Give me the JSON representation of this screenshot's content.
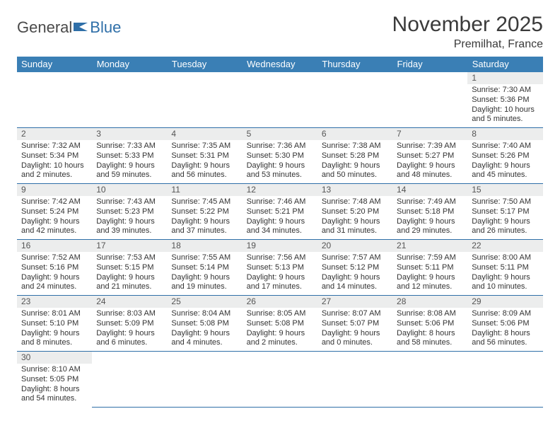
{
  "logo": {
    "text1": "General",
    "text2": "Blue"
  },
  "title": "November 2025",
  "location": "Premilhat, France",
  "colors": {
    "header_bg": "#3a7fb5",
    "header_text": "#ffffff",
    "rule": "#2f6fa8",
    "daybar_bg": "#eceded",
    "page_bg": "#ffffff",
    "text": "#333333",
    "logo_icon": "#2f6fa8"
  },
  "weekdays": [
    "Sunday",
    "Monday",
    "Tuesday",
    "Wednesday",
    "Thursday",
    "Friday",
    "Saturday"
  ],
  "weeks": [
    [
      null,
      null,
      null,
      null,
      null,
      null,
      {
        "n": "1",
        "sunrise": "Sunrise: 7:30 AM",
        "sunset": "Sunset: 5:36 PM",
        "daylight": "Daylight: 10 hours and 5 minutes."
      }
    ],
    [
      {
        "n": "2",
        "sunrise": "Sunrise: 7:32 AM",
        "sunset": "Sunset: 5:34 PM",
        "daylight": "Daylight: 10 hours and 2 minutes."
      },
      {
        "n": "3",
        "sunrise": "Sunrise: 7:33 AM",
        "sunset": "Sunset: 5:33 PM",
        "daylight": "Daylight: 9 hours and 59 minutes."
      },
      {
        "n": "4",
        "sunrise": "Sunrise: 7:35 AM",
        "sunset": "Sunset: 5:31 PM",
        "daylight": "Daylight: 9 hours and 56 minutes."
      },
      {
        "n": "5",
        "sunrise": "Sunrise: 7:36 AM",
        "sunset": "Sunset: 5:30 PM",
        "daylight": "Daylight: 9 hours and 53 minutes."
      },
      {
        "n": "6",
        "sunrise": "Sunrise: 7:38 AM",
        "sunset": "Sunset: 5:28 PM",
        "daylight": "Daylight: 9 hours and 50 minutes."
      },
      {
        "n": "7",
        "sunrise": "Sunrise: 7:39 AM",
        "sunset": "Sunset: 5:27 PM",
        "daylight": "Daylight: 9 hours and 48 minutes."
      },
      {
        "n": "8",
        "sunrise": "Sunrise: 7:40 AM",
        "sunset": "Sunset: 5:26 PM",
        "daylight": "Daylight: 9 hours and 45 minutes."
      }
    ],
    [
      {
        "n": "9",
        "sunrise": "Sunrise: 7:42 AM",
        "sunset": "Sunset: 5:24 PM",
        "daylight": "Daylight: 9 hours and 42 minutes."
      },
      {
        "n": "10",
        "sunrise": "Sunrise: 7:43 AM",
        "sunset": "Sunset: 5:23 PM",
        "daylight": "Daylight: 9 hours and 39 minutes."
      },
      {
        "n": "11",
        "sunrise": "Sunrise: 7:45 AM",
        "sunset": "Sunset: 5:22 PM",
        "daylight": "Daylight: 9 hours and 37 minutes."
      },
      {
        "n": "12",
        "sunrise": "Sunrise: 7:46 AM",
        "sunset": "Sunset: 5:21 PM",
        "daylight": "Daylight: 9 hours and 34 minutes."
      },
      {
        "n": "13",
        "sunrise": "Sunrise: 7:48 AM",
        "sunset": "Sunset: 5:20 PM",
        "daylight": "Daylight: 9 hours and 31 minutes."
      },
      {
        "n": "14",
        "sunrise": "Sunrise: 7:49 AM",
        "sunset": "Sunset: 5:18 PM",
        "daylight": "Daylight: 9 hours and 29 minutes."
      },
      {
        "n": "15",
        "sunrise": "Sunrise: 7:50 AM",
        "sunset": "Sunset: 5:17 PM",
        "daylight": "Daylight: 9 hours and 26 minutes."
      }
    ],
    [
      {
        "n": "16",
        "sunrise": "Sunrise: 7:52 AM",
        "sunset": "Sunset: 5:16 PM",
        "daylight": "Daylight: 9 hours and 24 minutes."
      },
      {
        "n": "17",
        "sunrise": "Sunrise: 7:53 AM",
        "sunset": "Sunset: 5:15 PM",
        "daylight": "Daylight: 9 hours and 21 minutes."
      },
      {
        "n": "18",
        "sunrise": "Sunrise: 7:55 AM",
        "sunset": "Sunset: 5:14 PM",
        "daylight": "Daylight: 9 hours and 19 minutes."
      },
      {
        "n": "19",
        "sunrise": "Sunrise: 7:56 AM",
        "sunset": "Sunset: 5:13 PM",
        "daylight": "Daylight: 9 hours and 17 minutes."
      },
      {
        "n": "20",
        "sunrise": "Sunrise: 7:57 AM",
        "sunset": "Sunset: 5:12 PM",
        "daylight": "Daylight: 9 hours and 14 minutes."
      },
      {
        "n": "21",
        "sunrise": "Sunrise: 7:59 AM",
        "sunset": "Sunset: 5:11 PM",
        "daylight": "Daylight: 9 hours and 12 minutes."
      },
      {
        "n": "22",
        "sunrise": "Sunrise: 8:00 AM",
        "sunset": "Sunset: 5:11 PM",
        "daylight": "Daylight: 9 hours and 10 minutes."
      }
    ],
    [
      {
        "n": "23",
        "sunrise": "Sunrise: 8:01 AM",
        "sunset": "Sunset: 5:10 PM",
        "daylight": "Daylight: 9 hours and 8 minutes."
      },
      {
        "n": "24",
        "sunrise": "Sunrise: 8:03 AM",
        "sunset": "Sunset: 5:09 PM",
        "daylight": "Daylight: 9 hours and 6 minutes."
      },
      {
        "n": "25",
        "sunrise": "Sunrise: 8:04 AM",
        "sunset": "Sunset: 5:08 PM",
        "daylight": "Daylight: 9 hours and 4 minutes."
      },
      {
        "n": "26",
        "sunrise": "Sunrise: 8:05 AM",
        "sunset": "Sunset: 5:08 PM",
        "daylight": "Daylight: 9 hours and 2 minutes."
      },
      {
        "n": "27",
        "sunrise": "Sunrise: 8:07 AM",
        "sunset": "Sunset: 5:07 PM",
        "daylight": "Daylight: 9 hours and 0 minutes."
      },
      {
        "n": "28",
        "sunrise": "Sunrise: 8:08 AM",
        "sunset": "Sunset: 5:06 PM",
        "daylight": "Daylight: 8 hours and 58 minutes."
      },
      {
        "n": "29",
        "sunrise": "Sunrise: 8:09 AM",
        "sunset": "Sunset: 5:06 PM",
        "daylight": "Daylight: 8 hours and 56 minutes."
      }
    ],
    [
      {
        "n": "30",
        "sunrise": "Sunrise: 8:10 AM",
        "sunset": "Sunset: 5:05 PM",
        "daylight": "Daylight: 8 hours and 54 minutes."
      },
      null,
      null,
      null,
      null,
      null,
      null
    ]
  ]
}
